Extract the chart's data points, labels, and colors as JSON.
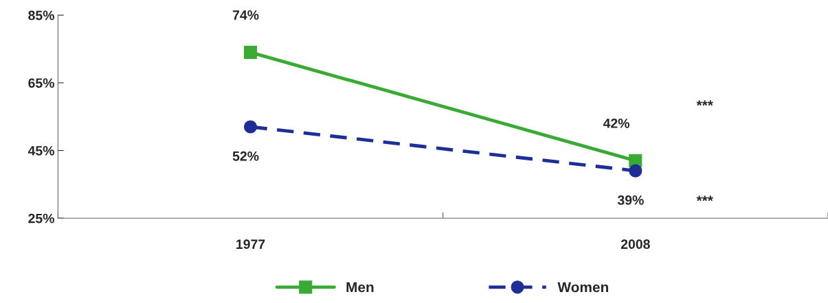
{
  "chart_data": {
    "type": "line",
    "categories": [
      "1977",
      "2008"
    ],
    "series": [
      {
        "name": "Men",
        "color": "#3aaa35",
        "values": [
          74,
          42
        ],
        "marker": "square",
        "line_style": "solid",
        "value_labels": [
          "74%",
          "42%"
        ]
      },
      {
        "name": "Women",
        "color": "#1f2d96",
        "values": [
          52,
          39
        ],
        "marker": "circle",
        "line_style": "dashed",
        "value_labels": [
          "52%",
          "39%"
        ]
      }
    ],
    "ylim": [
      25,
      85
    ],
    "yticks": [
      {
        "value": 25,
        "label": "25%"
      },
      {
        "value": 45,
        "label": "45%"
      },
      {
        "value": 65,
        "label": "65%"
      },
      {
        "value": 85,
        "label": "85%"
      }
    ],
    "annotations": [
      "***",
      "***"
    ],
    "grid": false,
    "legend": "bottom"
  }
}
